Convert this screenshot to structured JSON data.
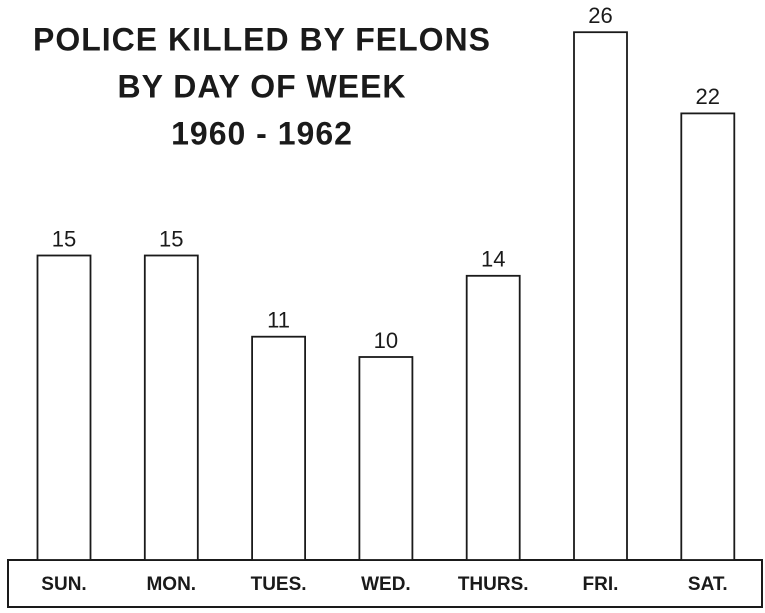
{
  "chart_data": {
    "type": "bar",
    "title": [
      "POLICE KILLED BY FELONS",
      "BY DAY OF WEEK",
      "1960 - 1962"
    ],
    "categories": [
      "SUN.",
      "MON.",
      "TUES.",
      "WED.",
      "THURS.",
      "FRI.",
      "SAT."
    ],
    "values": [
      15,
      15,
      11,
      10,
      14,
      26,
      22
    ],
    "color": "#ffffff"
  }
}
